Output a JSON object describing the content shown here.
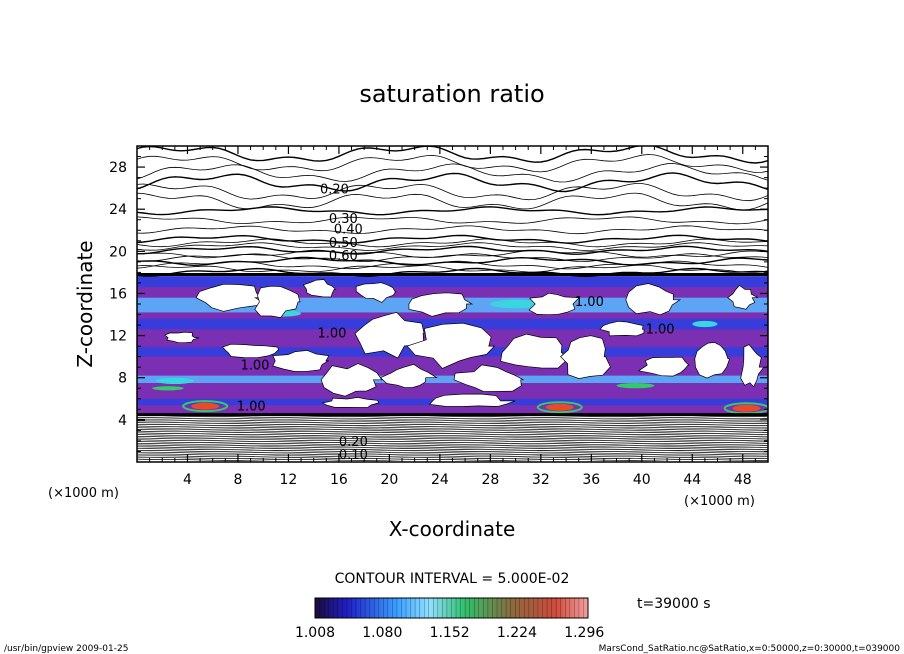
{
  "chart_data": {
    "type": "heatmap",
    "title": "saturation ratio",
    "xlabel": "X-coordinate",
    "ylabel": "Z-coordinate",
    "x_unit": "(×1000 m)",
    "y_unit": "(×1000 m)",
    "xlim": [
      0,
      50
    ],
    "ylim": [
      0,
      30
    ],
    "x_ticks": [
      "4",
      "8",
      "12",
      "16",
      "20",
      "24",
      "28",
      "32",
      "36",
      "40",
      "44",
      "48"
    ],
    "x_tick_values": [
      4,
      8,
      12,
      16,
      20,
      24,
      28,
      32,
      36,
      40,
      44,
      48
    ],
    "y_ticks": [
      "4",
      "8",
      "12",
      "16",
      "20",
      "24",
      "28"
    ],
    "y_tick_values": [
      4,
      8,
      12,
      16,
      20,
      24,
      28
    ],
    "contour_labels": [
      {
        "text": "0.20",
        "x": 14.5,
        "y": 25.5
      },
      {
        "text": "0.30",
        "x": 15.2,
        "y": 22.7
      },
      {
        "text": "0.40",
        "x": 15.6,
        "y": 21.7
      },
      {
        "text": "0.50",
        "x": 15.2,
        "y": 20.4
      },
      {
        "text": "0.60",
        "x": 15.2,
        "y": 19.2
      },
      {
        "text": "1.00",
        "x": 34.7,
        "y": 14.8
      },
      {
        "text": "1.00",
        "x": 14.3,
        "y": 11.8
      },
      {
        "text": "1.00",
        "x": 8.2,
        "y": 8.8
      },
      {
        "text": "1.00",
        "x": 40.3,
        "y": 12.2
      },
      {
        "text": "1.00",
        "x": 7.9,
        "y": 4.9
      },
      {
        "text": "0.20",
        "x": 16.0,
        "y": 1.5
      },
      {
        "text": "0.10",
        "x": 16.0,
        "y": 0.3
      }
    ],
    "contour_interval_text": "CONTOUR INTERVAL = 5.000E-02",
    "colorbar_min": 1.008,
    "colorbar_max": 1.3,
    "colorbar_ticks": [
      "1.008",
      "1.080",
      "1.152",
      "1.224",
      "1.296"
    ],
    "colors": {
      "saturated_low": "#7b2fb3",
      "band_mid": "#2c3fe0",
      "band_light": "#59b8ff",
      "band_cyan": "#3ad6e0",
      "band_green": "#35c96a",
      "band_hot": "#e84a2a"
    }
  },
  "time_label": "t=39000 s",
  "footer_left": "/usr/bin/gpview   2009-01-25",
  "footer_right": "MarsCond_SatRatio.nc@SatRatio,x=0:50000,z=0:30000,t=039000"
}
